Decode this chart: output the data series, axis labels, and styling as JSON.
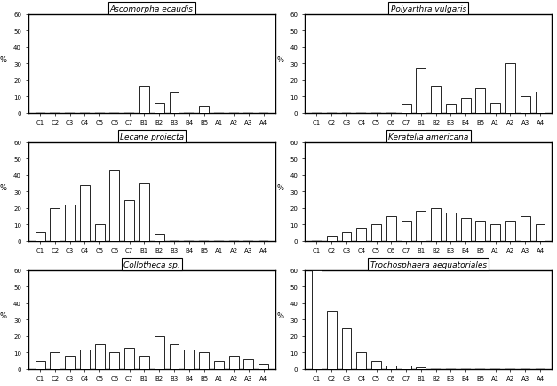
{
  "categories": [
    "C1",
    "C2",
    "C3",
    "C4",
    "C5",
    "C6",
    "C7",
    "B1",
    "B2",
    "B3",
    "B4",
    "B5",
    "A1",
    "A2",
    "A3",
    "A4"
  ],
  "charts": [
    {
      "title": "Ascomorpha ecaudis",
      "values": [
        0,
        0,
        0,
        0,
        0,
        0,
        0,
        16,
        6,
        12,
        0,
        4,
        0,
        0,
        0,
        0
      ]
    },
    {
      "title": "Polyarthra vulgaris",
      "values": [
        0,
        0,
        0,
        0,
        0,
        0,
        5,
        27,
        16,
        5,
        9,
        15,
        6,
        30,
        10,
        13
      ]
    },
    {
      "title": "Lecane proiecta",
      "values": [
        5,
        20,
        22,
        34,
        10,
        43,
        25,
        35,
        4,
        0,
        0,
        0,
        0,
        0,
        0,
        0
      ]
    },
    {
      "title": "Keratella americana",
      "values": [
        0,
        3,
        5,
        8,
        10,
        15,
        12,
        18,
        20,
        17,
        14,
        12,
        10,
        12,
        15,
        10
      ]
    },
    {
      "title": "Collotheca sp.",
      "values": [
        5,
        10,
        8,
        12,
        15,
        10,
        13,
        8,
        20,
        15,
        12,
        10,
        5,
        8,
        6,
        3
      ]
    },
    {
      "title": "Trochosphaera aequatoriales",
      "values": [
        60,
        35,
        25,
        10,
        5,
        2,
        2,
        1,
        0,
        0,
        0,
        0,
        0,
        0,
        0,
        0
      ]
    }
  ],
  "ylim": [
    0,
    60
  ],
  "yticks": [
    0,
    10,
    20,
    30,
    40,
    50,
    60
  ],
  "ylabel": "%",
  "bar_color": "white",
  "bar_edgecolor": "black",
  "background_color": "white",
  "outer_border_color": "black"
}
